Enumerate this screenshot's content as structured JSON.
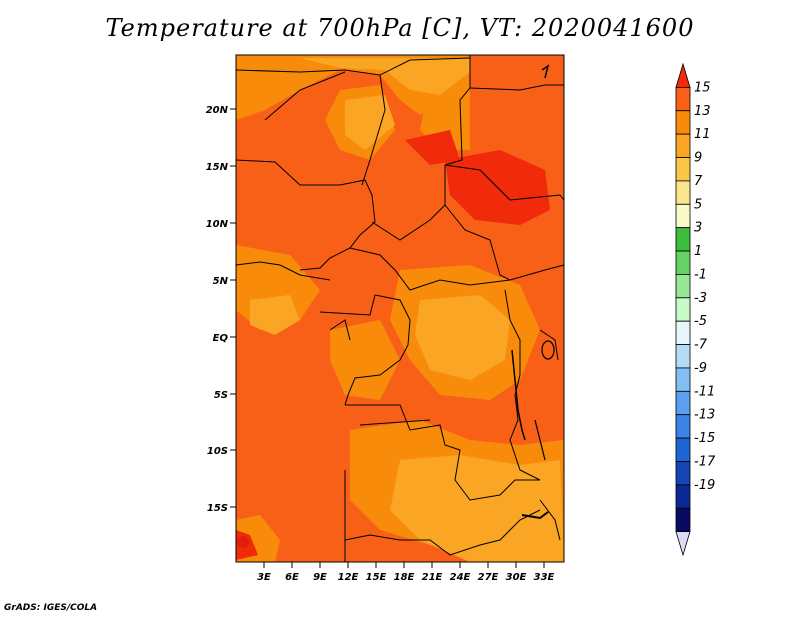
{
  "title": "Temperature at 700hPa [C], VT: 2020041600",
  "credit": "GrADS: IGES/COLA",
  "map": {
    "lat_labels": [
      "20N",
      "15N",
      "10N",
      "5N",
      "EQ",
      "5S",
      "10S",
      "15S"
    ],
    "lon_labels": [
      "3E",
      "6E",
      "9E",
      "12E",
      "15E",
      "18E",
      "21E",
      "24E",
      "27E",
      "30E",
      "33E"
    ],
    "base_color": "#f86018"
  },
  "colorbar": {
    "labels": [
      "15",
      "13",
      "11",
      "9",
      "7",
      "5",
      "3",
      "1",
      "-1",
      "-3",
      "-5",
      "-7",
      "-9",
      "-11",
      "-13",
      "-15",
      "-17",
      "-19"
    ],
    "colors": [
      "#f02a0a",
      "#f86018",
      "#f88c0a",
      "#faa524",
      "#fac848",
      "#fae68c",
      "#fafac8",
      "#3cbe3c",
      "#64d264",
      "#96e696",
      "#c8fac8",
      "#e6f6fa",
      "#b4dcf8",
      "#82c0f4",
      "#5aa0ee",
      "#3c82e6",
      "#1e64d2",
      "#1446b4",
      "#0a2896",
      "#0a0a64",
      "#dcdcf6"
    ]
  }
}
